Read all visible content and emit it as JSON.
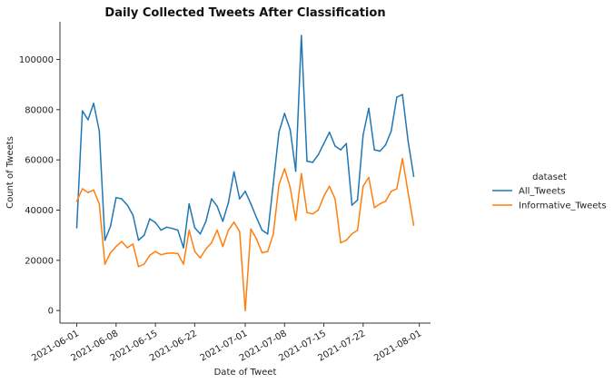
{
  "chart_data": {
    "type": "line",
    "title": "Daily Collected Tweets After Classification",
    "xlabel": "Date of Tweet",
    "ylabel": "Count of Tweets",
    "ylim": [
      -5000,
      115000
    ],
    "yticks": [
      0,
      20000,
      40000,
      60000,
      80000,
      100000
    ],
    "xticks": [
      "2021-06-01",
      "2021-06-08",
      "2021-06-15",
      "2021-06-22",
      "2021-07-01",
      "2021-07-08",
      "2021-07-15",
      "2021-07-22",
      "2021-08-01"
    ],
    "xlim": [
      "2021-05-29",
      "2021-08-03"
    ],
    "grid": false,
    "legend": {
      "title": "dataset",
      "placement": "right"
    },
    "x": [
      "2021-06-01",
      "2021-06-02",
      "2021-06-03",
      "2021-06-04",
      "2021-06-05",
      "2021-06-06",
      "2021-06-07",
      "2021-06-08",
      "2021-06-09",
      "2021-06-10",
      "2021-06-11",
      "2021-06-12",
      "2021-06-13",
      "2021-06-14",
      "2021-06-15",
      "2021-06-16",
      "2021-06-17",
      "2021-06-18",
      "2021-06-19",
      "2021-06-20",
      "2021-06-21",
      "2021-06-22",
      "2021-06-23",
      "2021-06-24",
      "2021-06-25",
      "2021-06-26",
      "2021-06-27",
      "2021-06-28",
      "2021-06-29",
      "2021-06-30",
      "2021-07-01",
      "2021-07-02",
      "2021-07-03",
      "2021-07-04",
      "2021-07-05",
      "2021-07-06",
      "2021-07-07",
      "2021-07-08",
      "2021-07-09",
      "2021-07-10",
      "2021-07-11",
      "2021-07-12",
      "2021-07-13",
      "2021-07-14",
      "2021-07-15",
      "2021-07-16",
      "2021-07-17",
      "2021-07-18",
      "2021-07-19",
      "2021-07-20",
      "2021-07-21",
      "2021-07-22",
      "2021-07-23",
      "2021-07-24",
      "2021-07-25",
      "2021-07-26",
      "2021-07-27",
      "2021-07-28",
      "2021-07-29",
      "2021-07-30",
      "2021-07-31"
    ],
    "series": [
      {
        "name": "All_Tweets",
        "color": "#1f77b4",
        "values": [
          33000,
          79500,
          76000,
          82500,
          71500,
          28000,
          33500,
          45000,
          44500,
          42000,
          38000,
          28000,
          30000,
          36500,
          35000,
          32000,
          33200,
          32700,
          32000,
          25000,
          42500,
          33000,
          30500,
          35500,
          44500,
          41500,
          35500,
          43000,
          55200,
          44500,
          47500,
          42500,
          37000,
          32000,
          30500,
          50500,
          71000,
          78500,
          72000,
          55500,
          109500,
          59500,
          59000,
          62000,
          66500,
          71000,
          65500,
          64000,
          66500,
          42000,
          44000,
          70000,
          80500,
          64000,
          63500,
          66000,
          71500,
          85000,
          86000,
          67500,
          53500
        ]
      },
      {
        "name": "Informative_Tweets",
        "color": "#ff7f0e",
        "values": [
          43500,
          48500,
          47000,
          48000,
          42500,
          18500,
          23000,
          25500,
          27500,
          25000,
          26500,
          17500,
          18500,
          22000,
          23500,
          22200,
          22800,
          22900,
          22700,
          18500,
          32000,
          23500,
          21000,
          24500,
          27000,
          32000,
          25500,
          32000,
          35200,
          31500,
          0,
          32500,
          28500,
          23000,
          23500,
          30500,
          50000,
          56500,
          49000,
          36000,
          54500,
          39000,
          38500,
          40000,
          45500,
          49500,
          44500,
          27000,
          28000,
          30500,
          32000,
          49500,
          53000,
          41000,
          42500,
          43500,
          47500,
          48500,
          60500,
          47000,
          34000
        ]
      }
    ]
  }
}
